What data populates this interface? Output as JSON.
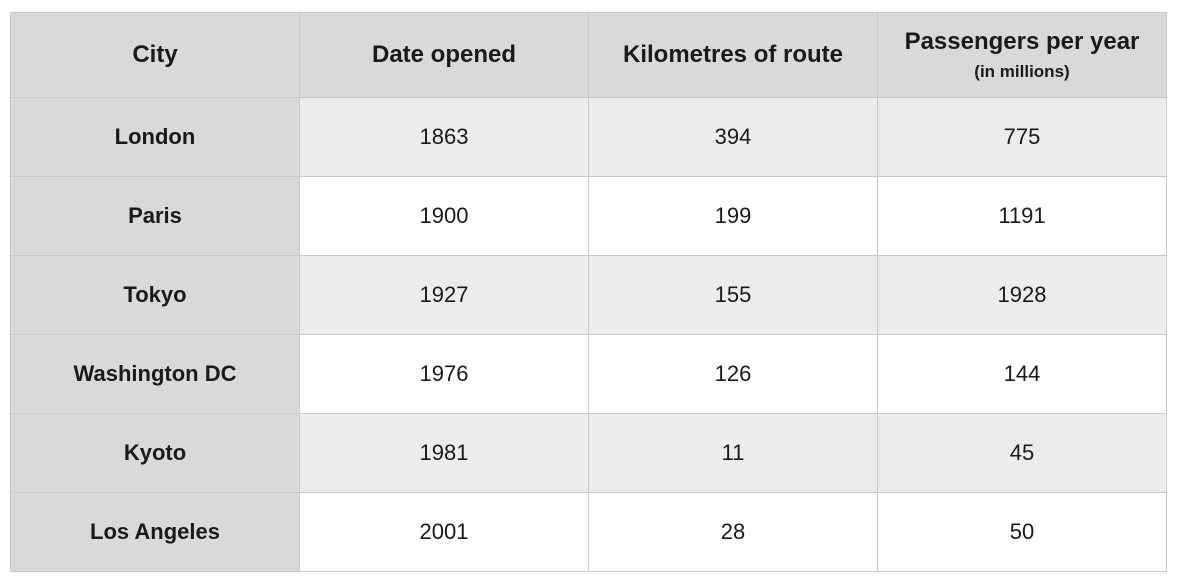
{
  "chart_data": {
    "type": "table",
    "columns": [
      {
        "label": "City",
        "sublabel": ""
      },
      {
        "label": "Date opened",
        "sublabel": ""
      },
      {
        "label": "Kilometres of route",
        "sublabel": ""
      },
      {
        "label": "Passengers per year",
        "sublabel": "(in millions)"
      }
    ],
    "rows": [
      [
        "London",
        "1863",
        "394",
        "775"
      ],
      [
        "Paris",
        "1900",
        "199",
        "1191"
      ],
      [
        "Tokyo",
        "1927",
        "155",
        "1928"
      ],
      [
        "Washington DC",
        "1976",
        "126",
        "144"
      ],
      [
        "Kyoto",
        "1981",
        "11",
        "45"
      ],
      [
        "Los Angeles",
        "2001",
        "28",
        "50"
      ]
    ]
  },
  "colors": {
    "header_bg": "#d9d9d9",
    "city_bg": "#d9d9d9",
    "shaded_row_bg": "#ececec",
    "plain_row_bg": "#ffffff",
    "border": "#c9c9c9"
  }
}
